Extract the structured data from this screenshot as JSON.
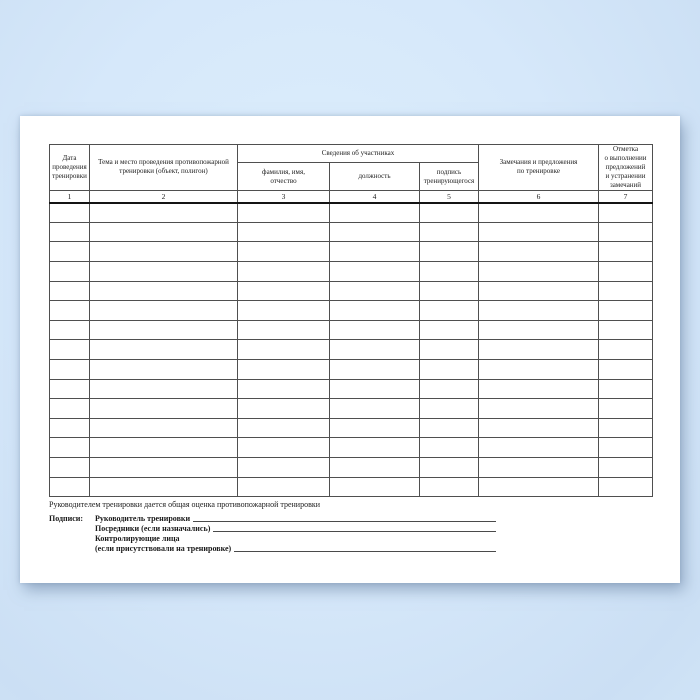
{
  "background": {
    "accent_color": "#d6e8fa"
  },
  "page": {
    "color": "#ffffff"
  },
  "table": {
    "group_header": "Сведения об участниках",
    "columns": [
      {
        "num": "1",
        "label": "Дата\nпроведения\nтренировки"
      },
      {
        "num": "2",
        "label": "Тема и место проведения противопожарной\nтренировки (объект, полигон)"
      },
      {
        "num": "3",
        "label": "фамилия, имя,\nотчество"
      },
      {
        "num": "4",
        "label": "должность"
      },
      {
        "num": "5",
        "label": "подпись\nтренирующегося"
      },
      {
        "num": "6",
        "label": "Замечания и предложения\nпо тренировке"
      },
      {
        "num": "7",
        "label": "Отметка\nо выполнении\nпредложений\nи устранении\nзамечаний"
      }
    ],
    "empty_rows": 15
  },
  "note": "Руководителем тренировки дается общая оценка противопожарной тренировки",
  "signatures": {
    "heading": "Подписи:",
    "rows": [
      {
        "label": "Руководитель тренировки",
        "line": true
      },
      {
        "label": "Посредники (если назначались)",
        "line": true
      },
      {
        "label": "Контролирующие лица",
        "line": false
      },
      {
        "label": "(если присутствовали на тренировке)",
        "line": true
      }
    ]
  }
}
